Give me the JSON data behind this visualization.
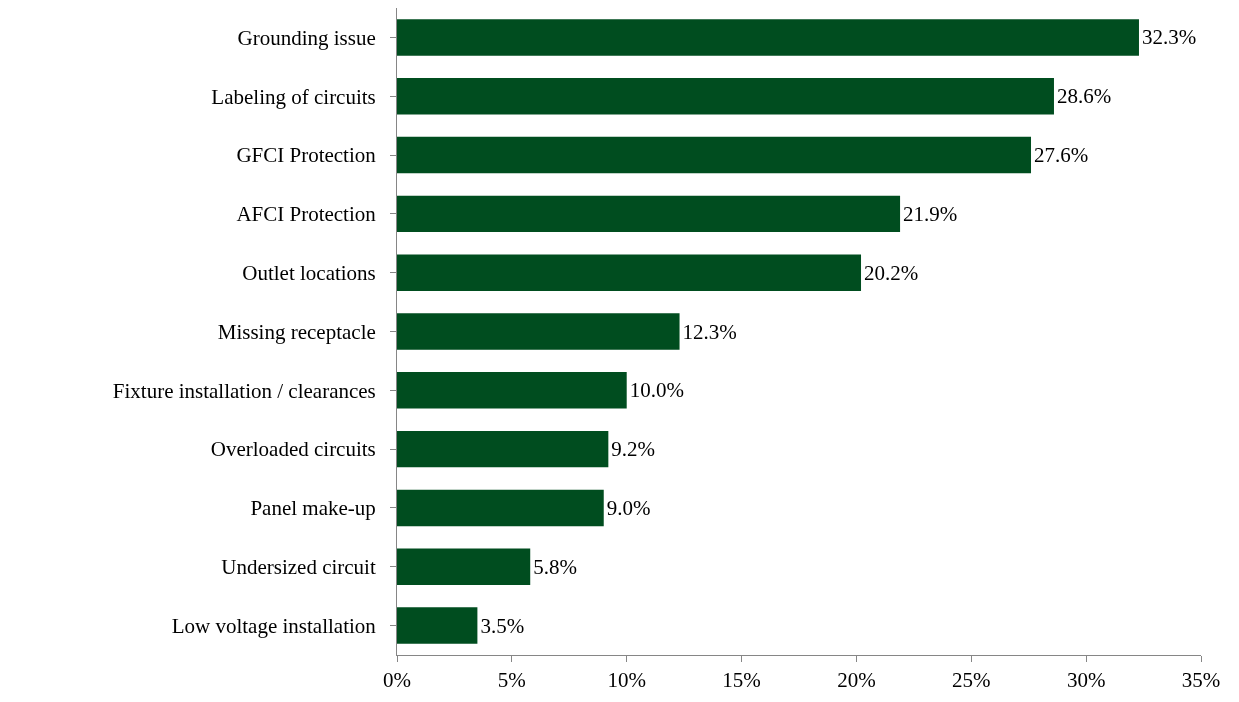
{
  "chart_data": {
    "type": "bar",
    "orientation": "horizontal",
    "categories": [
      "Grounding issue",
      "Labeling of circuits",
      "GFCI Protection",
      "AFCI Protection",
      "Outlet locations",
      "Missing receptacle",
      "Fixture installation / clearances",
      "Overloaded circuits",
      "Panel make-up",
      "Undersized circuit",
      "Low voltage installation"
    ],
    "values": [
      32.3,
      28.6,
      27.6,
      21.9,
      20.2,
      12.3,
      10.0,
      9.2,
      9.0,
      5.8,
      3.5
    ],
    "value_labels": [
      "32.3%",
      "28.6%",
      "27.6%",
      "21.9%",
      "20.2%",
      "12.3%",
      "10.0%",
      "9.2%",
      "9.0%",
      "5.8%",
      "3.5%"
    ],
    "color": "#004d1f",
    "xlim": [
      0,
      35
    ],
    "xticks": [
      {
        "value": 0,
        "label": "0%"
      },
      {
        "value": 5,
        "label": "5%"
      },
      {
        "value": 10,
        "label": "10%"
      },
      {
        "value": 15,
        "label": "15%"
      },
      {
        "value": 20,
        "label": "20%"
      },
      {
        "value": 25,
        "label": "25%"
      },
      {
        "value": 30,
        "label": "30%"
      },
      {
        "value": 35,
        "label": "35%"
      }
    ],
    "marker": "none"
  }
}
